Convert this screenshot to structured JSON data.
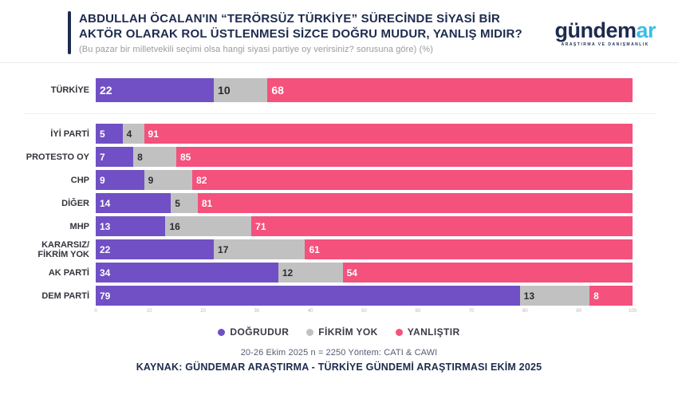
{
  "header": {
    "title": "ABDULLAH ÖCALAN'IN “TERÖRSÜZ TÜRKİYE” SÜRECİNDE SİYASİ BİR AKTÖR OLARAK ROL ÜSTLENMESİ SİZCE DOĞRU MUDUR, YANLIŞ MIDIR?",
    "subtitle": "(Bu pazar bir milletvekili seçimi olsa hangi siyasi partiye oy verirsiniz? sorusuna göre) (%)"
  },
  "logo": {
    "brand_primary": "gündem",
    "brand_accent": "ar",
    "tagline": "ARAŞTIRMA VE DANIŞMANLIK",
    "primary_color": "#1d2b4e",
    "accent_color": "#3bbfe3"
  },
  "chart_data": {
    "type": "bar",
    "orientation": "horizontal",
    "stacked": true,
    "title": "ABDULLAH ÖCALAN'IN “TERÖRSÜZ TÜRKİYE” SÜRECİNDE SİYASİ BİR AKTÖR OLARAK ROL ÜSTLENMESİ SİZCE DOĞRU MUDUR, YANLIŞ MIDIR?",
    "categories": [
      "TÜRKİYE",
      "İYİ PARTİ",
      "PROTESTO OY",
      "CHP",
      "DİĞER",
      "MHP",
      "KARARSIZ/FİKRİM YOK",
      "AK PARTİ",
      "DEM PARTİ"
    ],
    "series": [
      {
        "name": "DOĞRUDUR",
        "color": "#7050c4",
        "values": [
          22,
          5,
          7,
          9,
          14,
          13,
          22,
          34,
          79
        ]
      },
      {
        "name": "FİKRİM YOK",
        "color": "#c2c1c2",
        "values": [
          10,
          4,
          8,
          9,
          5,
          16,
          17,
          12,
          13
        ]
      },
      {
        "name": "YANLIŞTIR",
        "color": "#f4517c",
        "values": [
          68,
          91,
          85,
          82,
          81,
          71,
          61,
          54,
          8
        ]
      }
    ],
    "xlim": [
      0,
      100
    ],
    "x_ticks": [
      "0",
      "10",
      "20",
      "30",
      "40",
      "50",
      "60",
      "70",
      "80",
      "90",
      "100"
    ],
    "legend_position": "bottom",
    "value_labels": "inside-start",
    "grid": false
  },
  "footer": {
    "methodology": "20-26 Ekim 2025 n = 2250 Yöntem: CATI & CAWI",
    "source": "KAYNAK: GÜNDEMAR ARAŞTIRMA - TÜRKİYE GÜNDEMİ ARAŞTIRMASI EKİM 2025"
  }
}
